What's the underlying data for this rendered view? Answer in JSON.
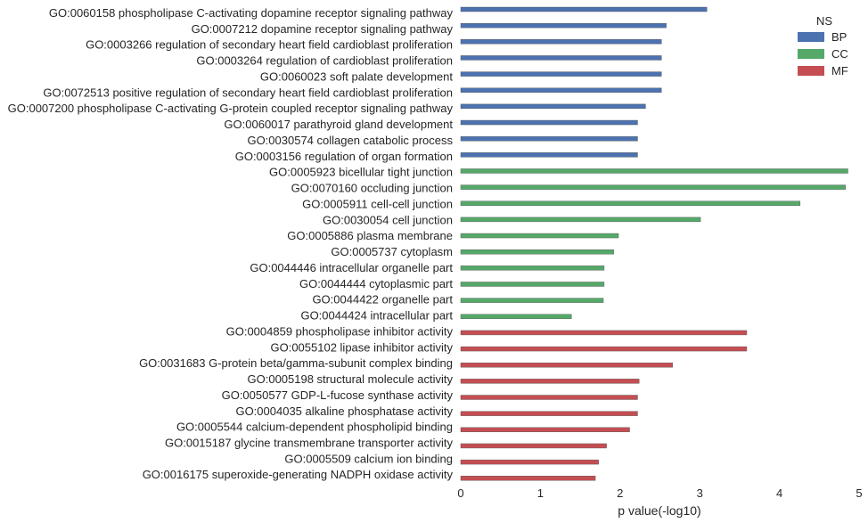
{
  "chart_data": {
    "type": "bar",
    "orientation": "horizontal",
    "xlabel": "p value(-log10)",
    "ylabel": "",
    "title": "",
    "xlim": [
      0,
      5
    ],
    "xticks": [
      0,
      1,
      2,
      3,
      4,
      5
    ],
    "grid": false,
    "legend": {
      "title": "NS",
      "placement": "top-right",
      "entries": [
        {
          "name": "BP",
          "color": "#4c72b0"
        },
        {
          "name": "CC",
          "color": "#55a868"
        },
        {
          "name": "MF",
          "color": "#c44e52"
        }
      ]
    },
    "categories": [
      "GO:0060158 phospholipase C-activating dopamine receptor signaling pathway",
      "GO:0007212 dopamine receptor signaling pathway",
      "GO:0003266 regulation of secondary heart field cardioblast proliferation",
      "GO:0003264 regulation of cardioblast proliferation",
      "GO:0060023 soft palate development",
      "GO:0072513 positive regulation of secondary heart field cardioblast proliferation",
      "GO:0007200 phospholipase C-activating G-protein coupled receptor signaling pathway",
      "GO:0060017 parathyroid gland development",
      "GO:0030574 collagen catabolic process",
      "GO:0003156 regulation of organ formation",
      "GO:0005923 bicellular tight junction",
      "GO:0070160 occluding junction",
      "GO:0005911 cell-cell junction",
      "GO:0030054 cell junction",
      "GO:0005886 plasma membrane",
      "GO:0005737 cytoplasm",
      "GO:0044446 intracellular organelle part",
      "GO:0044444 cytoplasmic part",
      "GO:0044422 organelle part",
      "GO:0044424 intracellular part",
      "GO:0004859 phospholipase inhibitor activity",
      "GO:0055102 lipase inhibitor activity",
      "GO:0031683 G-protein beta/gamma-subunit complex binding",
      "GO:0005198 structural molecule activity",
      "GO:0050577 GDP-L-fucose synthase activity",
      "GO:0004035 alkaline phosphatase activity",
      "GO:0005544 calcium-dependent phospholipid binding",
      "GO:0015187 glycine transmembrane transporter activity",
      "GO:0005509 calcium ion binding",
      "GO:0016175 superoxide-generating NADPH oxidase activity"
    ],
    "values": [
      3.09,
      2.58,
      2.52,
      2.52,
      2.52,
      2.52,
      2.32,
      2.22,
      2.22,
      2.22,
      4.86,
      4.83,
      4.26,
      3.01,
      1.98,
      1.92,
      1.8,
      1.8,
      1.79,
      1.39,
      3.59,
      3.59,
      2.66,
      2.24,
      2.22,
      2.22,
      2.12,
      1.83,
      1.73,
      1.69
    ],
    "groups": [
      "BP",
      "BP",
      "BP",
      "BP",
      "BP",
      "BP",
      "BP",
      "BP",
      "BP",
      "BP",
      "CC",
      "CC",
      "CC",
      "CC",
      "CC",
      "CC",
      "CC",
      "CC",
      "CC",
      "CC",
      "MF",
      "MF",
      "MF",
      "MF",
      "MF",
      "MF",
      "MF",
      "MF",
      "MF",
      "MF"
    ]
  }
}
